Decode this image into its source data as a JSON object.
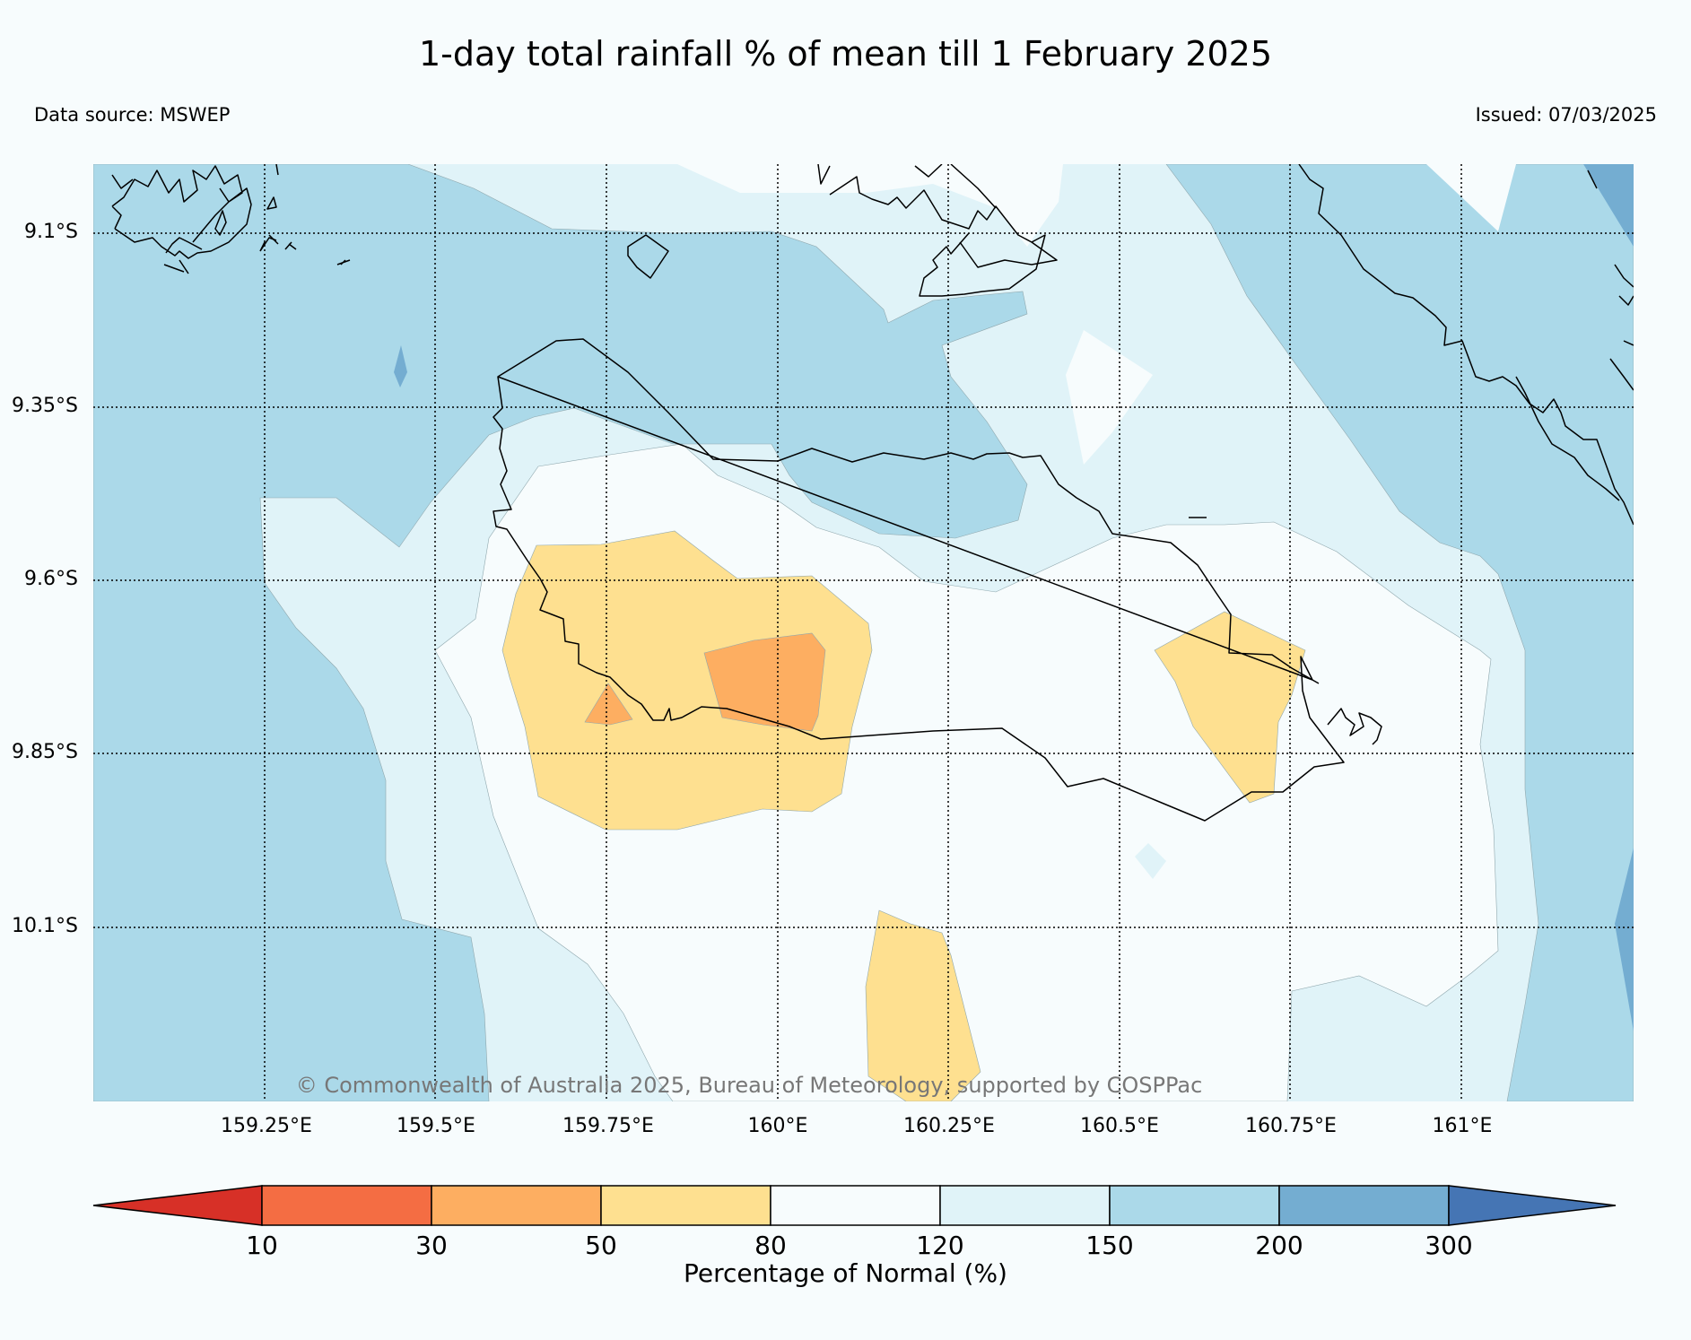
{
  "title": "1-day total rainfall % of mean till 1 February 2025",
  "data_source": "Data source: MSWEP",
  "issued": "Issued: 07/03/2025",
  "copyright": "© Commonwealth of Australia 2025, Bureau of Meteorology, supported by COSPPac",
  "map": {
    "lat_labels": [
      "9.1°S",
      "9.35°S",
      "9.6°S",
      "9.85°S",
      "10.1°S"
    ],
    "lon_labels": [
      "159.25°E",
      "159.5°E",
      "159.75°E",
      "160°E",
      "160.25°E",
      "160.5°E",
      "160.75°E",
      "161°E"
    ],
    "lat_values": [
      -9.1,
      -9.35,
      -9.6,
      -9.85,
      -10.1
    ],
    "lon_values": [
      159.25,
      159.5,
      159.75,
      160.0,
      160.25,
      160.5,
      160.75,
      161.0
    ]
  },
  "colorbar": {
    "label": "Percentage of Normal (%)",
    "ticks": [
      "10",
      "30",
      "50",
      "80",
      "120",
      "150",
      "200",
      "300"
    ],
    "colors": [
      "#d73027",
      "#f46d43",
      "#fdae61",
      "#fee090",
      "#f7fcfd",
      "#e0f3f8",
      "#abd9e9",
      "#74add1",
      "#4575b4"
    ]
  }
}
